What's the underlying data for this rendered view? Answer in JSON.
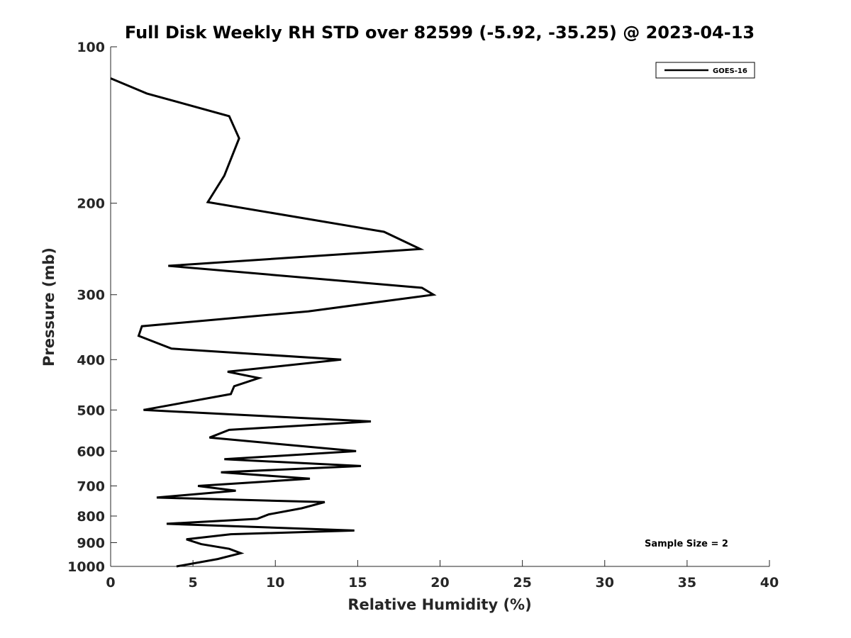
{
  "chart_data": {
    "type": "line",
    "title": "Full Disk Weekly RH STD over 82599 (-5.92, -35.25) @ 2023-04-13",
    "xlabel": "Relative Humidity (%)",
    "ylabel": "Pressure (mb)",
    "xlim": [
      0,
      40
    ],
    "ylim": [
      100,
      1000
    ],
    "y_scale": "log",
    "y_inverted": true,
    "grid": false,
    "legend_position": "top-right",
    "x_ticks": [
      0,
      5,
      10,
      15,
      20,
      25,
      30,
      35,
      40
    ],
    "y_ticks": [
      100,
      200,
      300,
      400,
      500,
      600,
      700,
      800,
      900,
      1000
    ],
    "annotation": "Sample Size = 2",
    "series": [
      {
        "name": "GOES-16",
        "color": "#000000",
        "x": [
          0.0,
          2.2,
          7.2,
          7.8,
          6.9,
          5.9,
          16.6,
          18.8,
          3.5,
          18.9,
          19.6,
          12.0,
          1.9,
          1.7,
          3.7,
          14.0,
          7.1,
          9.0,
          7.5,
          7.3,
          2.0,
          15.8,
          7.2,
          6.0,
          14.9,
          6.9,
          15.2,
          6.7,
          12.1,
          5.3,
          7.6,
          2.8,
          13.0,
          11.6,
          9.6,
          8.9,
          3.4,
          14.8,
          7.3,
          4.6,
          5.5,
          7.2,
          7.9,
          6.5,
          4.0
        ],
        "y": [
          115,
          123,
          136,
          150,
          177,
          199,
          227,
          245,
          264,
          291,
          300,
          323,
          345,
          360,
          381,
          400,
          422,
          434,
          450,
          466,
          500,
          526,
          546,
          565,
          600,
          622,
          641,
          659,
          678,
          700,
          715,
          737,
          752,
          773,
          794,
          810,
          828,
          853,
          867,
          887,
          906,
          925,
          943,
          968,
          1000
        ]
      }
    ]
  }
}
